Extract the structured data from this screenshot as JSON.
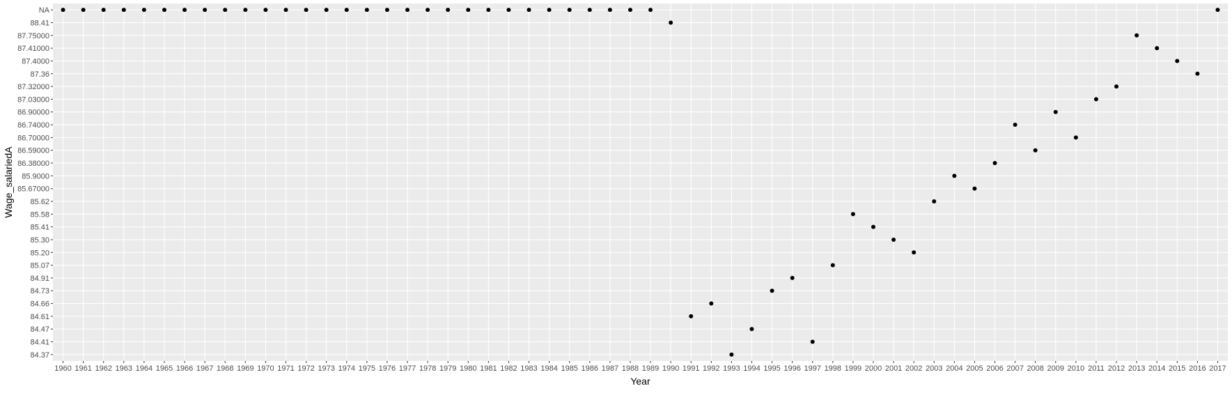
{
  "chart_data": {
    "type": "scatter",
    "title": "",
    "xlabel": "Year",
    "ylabel": "Wage_salariedA",
    "y_axis_kind": "discrete",
    "background": "#ebebeb",
    "grid": true,
    "grid_color": "#ffffff",
    "point_color": "#000000",
    "x_ticks": [
      "1960",
      "1961",
      "1962",
      "1963",
      "1964",
      "1965",
      "1966",
      "1967",
      "1968",
      "1969",
      "1970",
      "1971",
      "1972",
      "1973",
      "1974",
      "1975",
      "1976",
      "1977",
      "1978",
      "1979",
      "1980",
      "1981",
      "1982",
      "1983",
      "1984",
      "1985",
      "1986",
      "1987",
      "1988",
      "1989",
      "1990",
      "1991",
      "1992",
      "1993",
      "1994",
      "1995",
      "1996",
      "1997",
      "1998",
      "1999",
      "2000",
      "2001",
      "2002",
      "2003",
      "2004",
      "2005",
      "2006",
      "2007",
      "2008",
      "2009",
      "2010",
      "2011",
      "2012",
      "2013",
      "2014",
      "2015",
      "2016",
      "2017"
    ],
    "y_ticks": [
      "84.37",
      "84.41",
      "84.47",
      "84.61",
      "84.66",
      "84.73",
      "84.91",
      "85.07",
      "85.20",
      "85.30",
      "85.41",
      "85.58",
      "85.62",
      "85.67000",
      "85.9000",
      "86.38000",
      "86.59000",
      "86.70000",
      "86.74000",
      "86.90000",
      "87.03000",
      "87.32000",
      "87.36",
      "87.4000",
      "87.41000",
      "87.75000",
      "88.41",
      "NA"
    ],
    "points": [
      {
        "x": "1960",
        "y": "NA"
      },
      {
        "x": "1961",
        "y": "NA"
      },
      {
        "x": "1962",
        "y": "NA"
      },
      {
        "x": "1963",
        "y": "NA"
      },
      {
        "x": "1964",
        "y": "NA"
      },
      {
        "x": "1965",
        "y": "NA"
      },
      {
        "x": "1966",
        "y": "NA"
      },
      {
        "x": "1967",
        "y": "NA"
      },
      {
        "x": "1968",
        "y": "NA"
      },
      {
        "x": "1969",
        "y": "NA"
      },
      {
        "x": "1970",
        "y": "NA"
      },
      {
        "x": "1971",
        "y": "NA"
      },
      {
        "x": "1972",
        "y": "NA"
      },
      {
        "x": "1973",
        "y": "NA"
      },
      {
        "x": "1974",
        "y": "NA"
      },
      {
        "x": "1975",
        "y": "NA"
      },
      {
        "x": "1976",
        "y": "NA"
      },
      {
        "x": "1977",
        "y": "NA"
      },
      {
        "x": "1978",
        "y": "NA"
      },
      {
        "x": "1979",
        "y": "NA"
      },
      {
        "x": "1980",
        "y": "NA"
      },
      {
        "x": "1981",
        "y": "NA"
      },
      {
        "x": "1982",
        "y": "NA"
      },
      {
        "x": "1983",
        "y": "NA"
      },
      {
        "x": "1984",
        "y": "NA"
      },
      {
        "x": "1985",
        "y": "NA"
      },
      {
        "x": "1986",
        "y": "NA"
      },
      {
        "x": "1987",
        "y": "NA"
      },
      {
        "x": "1988",
        "y": "NA"
      },
      {
        "x": "1989",
        "y": "NA"
      },
      {
        "x": "1990",
        "y": "88.41"
      },
      {
        "x": "1991",
        "y": "84.61"
      },
      {
        "x": "1992",
        "y": "84.66"
      },
      {
        "x": "1993",
        "y": "84.37"
      },
      {
        "x": "1994",
        "y": "84.47"
      },
      {
        "x": "1995",
        "y": "84.73"
      },
      {
        "x": "1996",
        "y": "84.91"
      },
      {
        "x": "1997",
        "y": "84.41"
      },
      {
        "x": "1998",
        "y": "85.07"
      },
      {
        "x": "1999",
        "y": "85.58"
      },
      {
        "x": "2000",
        "y": "85.41"
      },
      {
        "x": "2001",
        "y": "85.30"
      },
      {
        "x": "2002",
        "y": "85.20"
      },
      {
        "x": "2003",
        "y": "85.62"
      },
      {
        "x": "2004",
        "y": "85.9000"
      },
      {
        "x": "2005",
        "y": "85.67000"
      },
      {
        "x": "2006",
        "y": "86.38000"
      },
      {
        "x": "2007",
        "y": "86.74000"
      },
      {
        "x": "2008",
        "y": "86.59000"
      },
      {
        "x": "2009",
        "y": "86.90000"
      },
      {
        "x": "2010",
        "y": "86.70000"
      },
      {
        "x": "2011",
        "y": "87.03000"
      },
      {
        "x": "2012",
        "y": "87.32000"
      },
      {
        "x": "2013",
        "y": "87.75000"
      },
      {
        "x": "2014",
        "y": "87.41000"
      },
      {
        "x": "2015",
        "y": "87.4000"
      },
      {
        "x": "2016",
        "y": "87.36"
      },
      {
        "x": "2017",
        "y": "NA"
      }
    ]
  }
}
